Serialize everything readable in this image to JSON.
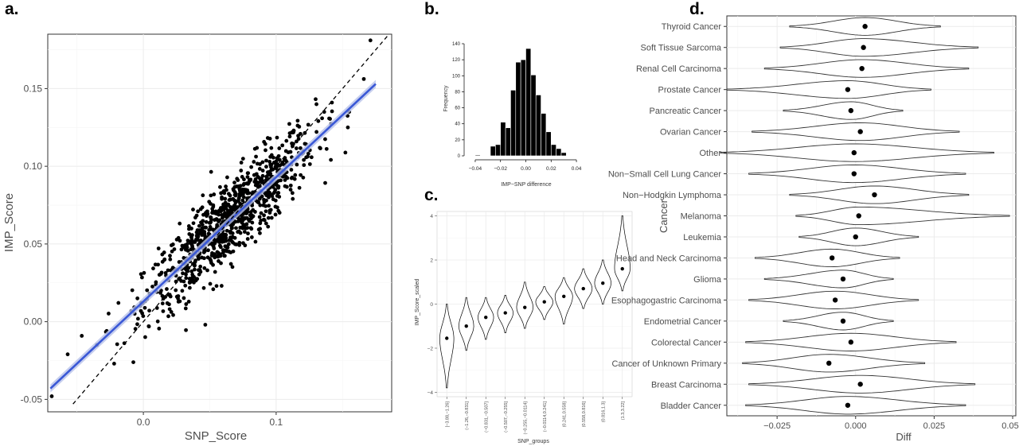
{
  "panel_labels": {
    "a": "a.",
    "b": "b.",
    "c": "c.",
    "d": "d."
  },
  "colors": {
    "fit_line": "#3a58d6",
    "fit_band": "#b8c2ea",
    "point": "#000000",
    "grid_major": "#ebebeb",
    "grid_minor": "#f5f5f5"
  },
  "chart_data": [
    {
      "id": "a",
      "type": "scatter",
      "xlabel": "SNP_Score",
      "ylabel": "IMP_Score",
      "xlim": [
        -0.072,
        0.187
      ],
      "ylim": [
        -0.058,
        0.185
      ],
      "xticks": [
        0.0,
        0.1
      ],
      "xtick_labels": [
        "0.0",
        "0.1"
      ],
      "yticks": [
        -0.05,
        0.0,
        0.05,
        0.1,
        0.15
      ],
      "ytick_labels": [
        "-0.05",
        "0.00",
        "0.05",
        "0.10",
        "0.15"
      ],
      "grid": true,
      "identity_line": {
        "style": "dashed",
        "slope": 1,
        "intercept": 0
      },
      "fit_line": {
        "x": [
          -0.07,
          0.175
        ],
        "y": [
          -0.043,
          0.153
        ]
      },
      "points_summary": {
        "n_approx": 900,
        "x_mean": 0.065,
        "x_sd": 0.032,
        "slope": 0.8,
        "intercept": 0.013,
        "residual_sd": 0.013,
        "x_range": [
          -0.07,
          0.175
        ]
      },
      "points_sample": [
        {
          "x": -0.069,
          "y": -0.048
        },
        {
          "x": -0.057,
          "y": -0.021
        },
        {
          "x": -0.035,
          "y": -0.015
        },
        {
          "x": -0.022,
          "y": -0.027
        },
        {
          "x": 0.171,
          "y": 0.181
        },
        {
          "x": 0.155,
          "y": 0.135
        },
        {
          "x": 0.142,
          "y": 0.141
        },
        {
          "x": 0.154,
          "y": 0.125
        }
      ]
    },
    {
      "id": "b",
      "type": "bar",
      "subtype": "histogram",
      "xlabel": "IMP−SNP difference",
      "ylabel": "Frequency",
      "xlim": [
        -0.045,
        0.045
      ],
      "ylim": [
        0,
        140
      ],
      "xticks": [
        -0.04,
        -0.02,
        0.0,
        0.02,
        0.04
      ],
      "xtick_labels": [
        "−0.04",
        "−0.02",
        "0.00",
        "0.02",
        "0.04"
      ],
      "yticks": [
        0,
        20,
        40,
        60,
        80,
        100,
        120,
        140
      ],
      "ytick_labels": [
        "0",
        "20",
        "40",
        "60",
        "80",
        "100",
        "120",
        "140"
      ],
      "bin_width": 0.004,
      "bins_start": [
        -0.04,
        -0.036,
        -0.032,
        -0.028,
        -0.024,
        -0.02,
        -0.016,
        -0.012,
        -0.008,
        -0.004,
        0.0,
        0.004,
        0.008,
        0.012,
        0.016,
        0.02,
        0.024,
        0.028,
        0.032,
        0.036
      ],
      "values": [
        1,
        0,
        0,
        12,
        14,
        42,
        35,
        82,
        117,
        120,
        134,
        101,
        76,
        53,
        30,
        14,
        9,
        4,
        0,
        0
      ]
    },
    {
      "id": "c",
      "type": "violin",
      "xlabel": "SNP_groups",
      "ylabel": "IMP_Score_scaled",
      "ylim": [
        -4.2,
        4.2
      ],
      "yticks": [
        -4,
        -2,
        0,
        2,
        4
      ],
      "ytick_labels": [
        "−4",
        "−2",
        "0",
        "2",
        "4"
      ],
      "grid": true,
      "categories": [
        "[−3.88,−1.26]",
        "(−1.26,−0.831]",
        "(−0.831,−0.507]",
        "(−0.507,−0.255]",
        "(−0.255,−0.0114]",
        "(−0.0114,0.241]",
        "(0.241,0.558]",
        "(0.558,0.816]",
        "(0.816,1.3]",
        "(1.3,3.22]"
      ],
      "medians": [
        -1.55,
        -1.0,
        -0.6,
        -0.4,
        -0.15,
        0.1,
        0.35,
        0.7,
        0.95,
        1.6
      ],
      "ranges": [
        [
          -3.8,
          0.0
        ],
        [
          -2.1,
          0.3
        ],
        [
          -1.6,
          0.3
        ],
        [
          -1.3,
          0.4
        ],
        [
          -1.1,
          1.0
        ],
        [
          -0.7,
          0.8
        ],
        [
          -0.9,
          1.2
        ],
        [
          -0.2,
          1.6
        ],
        [
          0.0,
          2.0
        ],
        [
          0.6,
          4.0
        ]
      ],
      "widths": [
        0.36,
        0.38,
        0.4,
        0.4,
        0.42,
        0.44,
        0.45,
        0.45,
        0.42,
        0.4
      ]
    },
    {
      "id": "d",
      "type": "violin",
      "orientation": "horizontal",
      "xlabel": "Diff",
      "ylabel": "Cancer",
      "xlim": [
        -0.041,
        0.051
      ],
      "xticks": [
        -0.025,
        0.0,
        0.025,
        0.05
      ],
      "xtick_labels": [
        "−0.025",
        "0.000",
        "0.025",
        "0.050"
      ],
      "grid": true,
      "categories": [
        "Thyroid Cancer",
        "Soft Tissue Sarcoma",
        "Renal Cell Carcinoma",
        "Prostate Cancer",
        "Pancreatic Cancer",
        "Ovarian Cancer",
        "Other",
        "Non−Small Cell Lung Cancer",
        "Non−Hodgkin Lymphoma",
        "Melanoma",
        "Leukemia",
        "Head and Neck Carcinoma",
        "Glioma",
        "Esophagogastric Carcinoma",
        "Endometrial Cancer",
        "Colorectal Cancer",
        "Cancer of Unknown Primary",
        "Breast Carcinoma",
        "Bladder Cancer"
      ],
      "medians": [
        0.003,
        0.0025,
        0.002,
        -0.0025,
        -0.0015,
        0.0015,
        -0.0005,
        -0.0005,
        0.006,
        0.001,
        0.0,
        -0.0075,
        -0.004,
        -0.0065,
        -0.004,
        -0.0015,
        -0.0085,
        0.0015,
        -0.0025
      ],
      "ranges": [
        [
          -0.021,
          0.027
        ],
        [
          -0.024,
          0.039
        ],
        [
          -0.029,
          0.036
        ],
        [
          -0.041,
          0.024
        ],
        [
          -0.023,
          0.015
        ],
        [
          -0.033,
          0.033
        ],
        [
          -0.043,
          0.044
        ],
        [
          -0.034,
          0.035
        ],
        [
          -0.021,
          0.036
        ],
        [
          -0.019,
          0.049
        ],
        [
          -0.018,
          0.02
        ],
        [
          -0.032,
          0.014
        ],
        [
          -0.029,
          0.012
        ],
        [
          -0.034,
          0.02
        ],
        [
          -0.023,
          0.012
        ],
        [
          -0.035,
          0.032
        ],
        [
          -0.036,
          0.022
        ],
        [
          -0.034,
          0.038
        ],
        [
          -0.035,
          0.035
        ]
      ]
    }
  ]
}
